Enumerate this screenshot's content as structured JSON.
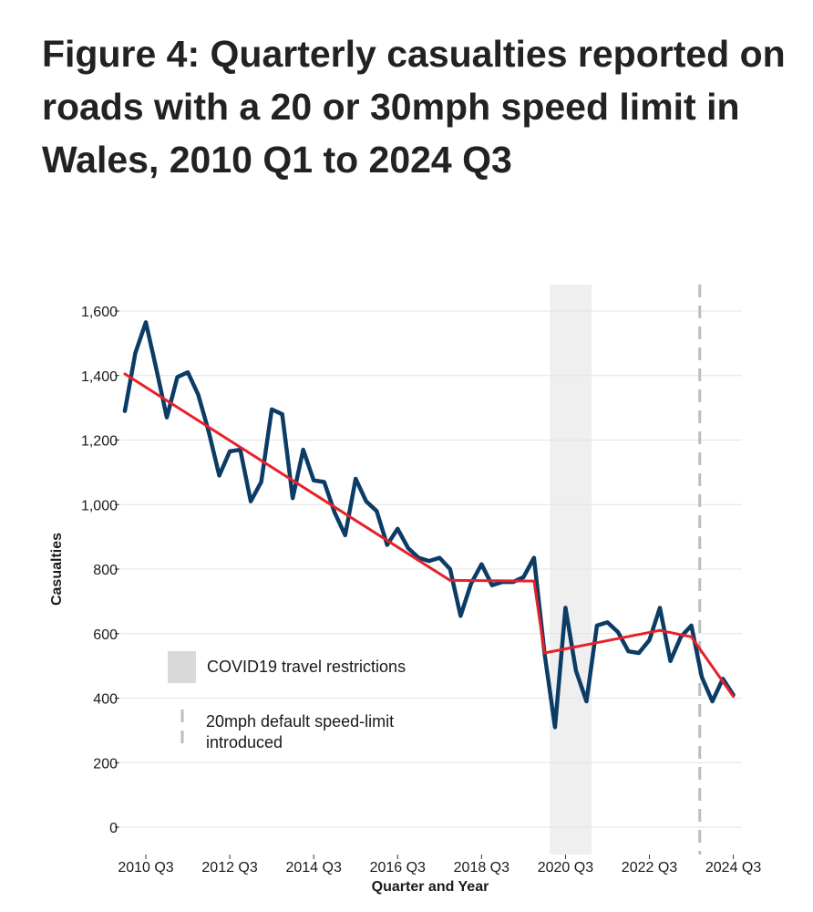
{
  "title": "Figure 4: Quarterly casualties reported on roads with a 20 or 30mph speed limit in Wales, 2010 Q1 to 2024 Q3",
  "colors": {
    "series": "#0b3c66",
    "trend": "#e8202a",
    "covid_band": "#efefef",
    "legend_swatch": "#d9d9d9",
    "dashed_line": "#bdbdbd",
    "grid": "#e3e3e3"
  },
  "chart_data": {
    "type": "line",
    "title": "Quarterly casualties reported on roads with a 20 or 30mph speed limit in Wales, 2010 Q1 to 2024 Q3",
    "xlabel": "Quarter and Year",
    "ylabel": "Casualties",
    "ylim": [
      0,
      1680
    ],
    "yticks": [
      0,
      200,
      400,
      600,
      800,
      1000,
      1200,
      1400,
      1600
    ],
    "ytick_labels": [
      "0",
      "200",
      "400",
      "600",
      "800",
      "1,000",
      "1,200",
      "1,400",
      "1,600"
    ],
    "x_start": "2010 Q1",
    "x_end": "2024 Q3",
    "xtick_index": [
      2,
      10,
      18,
      26,
      34,
      42,
      50,
      58
    ],
    "xtick_labels": [
      "2010 Q3",
      "2012 Q3",
      "2014 Q3",
      "2016 Q3",
      "2018 Q3",
      "2020 Q3",
      "2022 Q3",
      "2024 Q3"
    ],
    "series": [
      {
        "name": "Quarterly casualties",
        "values": [
          1290,
          1470,
          1565,
          1420,
          1270,
          1395,
          1410,
          1340,
          1225,
          1090,
          1165,
          1170,
          1010,
          1070,
          1295,
          1280,
          1020,
          1170,
          1075,
          1070,
          975,
          905,
          1080,
          1010,
          980,
          875,
          925,
          865,
          835,
          825,
          835,
          800,
          655,
          755,
          815,
          750,
          760,
          760,
          775,
          835,
          540,
          310,
          680,
          485,
          390,
          625,
          635,
          605,
          545,
          540,
          580,
          680,
          515,
          590,
          625,
          465,
          390,
          460,
          410
        ]
      },
      {
        "name": "Trend",
        "segments": [
          {
            "from_index": 0,
            "from_value": 1405,
            "to_index": 31,
            "to_value": 765
          },
          {
            "from_index": 31,
            "from_value": 765,
            "to_index": 39,
            "to_value": 763
          },
          {
            "from_index": 39,
            "from_value": 763,
            "to_index": 40,
            "to_value": 540
          },
          {
            "from_index": 40,
            "from_value": 540,
            "to_index": 51,
            "to_value": 610
          },
          {
            "from_index": 51,
            "from_value": 610,
            "to_index": 54,
            "to_value": 590
          },
          {
            "from_index": 54,
            "from_value": 590,
            "to_index": 58,
            "to_value": 405
          }
        ]
      }
    ],
    "covid_restrictions": {
      "from_index": 40.5,
      "to_index": 44.5
    },
    "speed_limit_introduced_index": 54.8,
    "legend": [
      {
        "type": "box",
        "label": "COVID19 travel restrictions"
      },
      {
        "type": "dashed",
        "label_lines": [
          "20mph default speed-limit",
          "introduced"
        ]
      }
    ]
  }
}
